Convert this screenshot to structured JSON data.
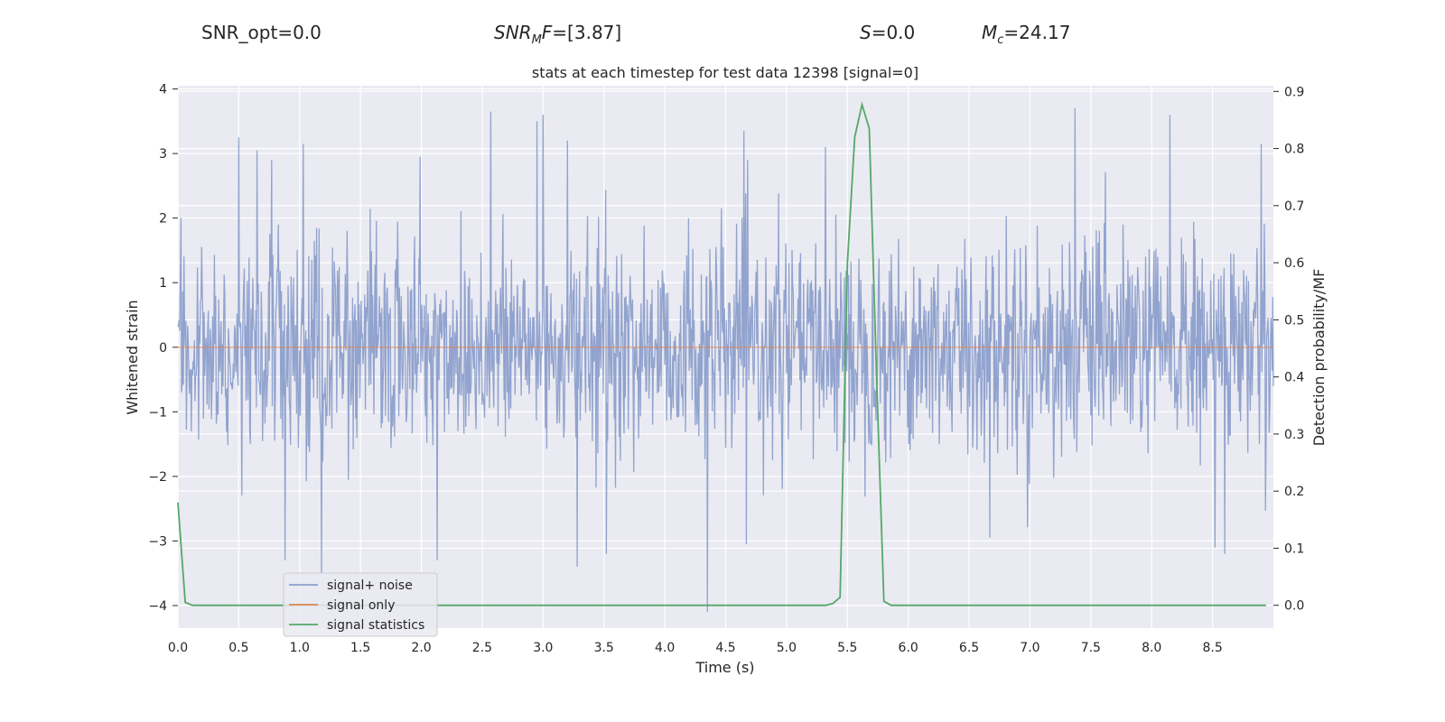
{
  "header": {
    "snr_opt": "SNR_opt=0.0",
    "snr_mf_name": "SNR",
    "snr_mf_sub": "M",
    "snr_mf_tail": "F",
    "snr_mf_value": "=[3.87]",
    "s_name": "S",
    "s_value": "=0.0",
    "mc_name": "M",
    "mc_sub": "c",
    "mc_value": "=24.17"
  },
  "chart_data": {
    "type": "line",
    "title": "stats at each timestep for test data 12398 [signal=0]",
    "xlabel": "Time (s)",
    "ylabel": "Whitened strain",
    "y2label": "Detection probability/MF",
    "xlim": [
      0.0,
      9.0
    ],
    "ylim": [
      -4.35,
      4.05
    ],
    "y2lim": [
      -0.04,
      0.91
    ],
    "xticks": [
      "0.0",
      "0.5",
      "1.0",
      "1.5",
      "2.0",
      "2.5",
      "3.0",
      "3.5",
      "4.0",
      "4.5",
      "5.0",
      "5.5",
      "6.0",
      "6.5",
      "7.0",
      "7.5",
      "8.0",
      "8.5"
    ],
    "yticks": [
      "4",
      "3",
      "2",
      "1",
      "0",
      "−1",
      "−2",
      "−3",
      "−4"
    ],
    "y2ticks": [
      "0.9",
      "0.8",
      "0.7",
      "0.6",
      "0.5",
      "0.4",
      "0.3",
      "0.2",
      "0.1",
      "0.0"
    ],
    "grid": true,
    "legend_position": "lower-left",
    "colors": {
      "noise": "#8c9fcb",
      "signal": "#dd8452",
      "stats": "#55a868",
      "background": "#eaeaf2",
      "grid": "#ffffff"
    },
    "series": [
      {
        "name": "signal+ noise",
        "axis": "left",
        "kind": "noise",
        "sample_rate_hz": 200,
        "duration_s": 9.0,
        "std": 0.82,
        "peaks": [
          {
            "t": 0.5,
            "v": 3.25
          },
          {
            "t": 0.65,
            "v": 3.05
          },
          {
            "t": 0.77,
            "v": 2.9
          },
          {
            "t": 1.03,
            "v": 3.15
          },
          {
            "t": 1.99,
            "v": 2.95
          },
          {
            "t": 2.57,
            "v": 3.65
          },
          {
            "t": 2.95,
            "v": 3.5
          },
          {
            "t": 3.0,
            "v": 3.6
          },
          {
            "t": 3.2,
            "v": 3.2
          },
          {
            "t": 4.65,
            "v": 3.35
          },
          {
            "t": 5.32,
            "v": 3.1
          },
          {
            "t": 7.37,
            "v": 3.7
          },
          {
            "t": 8.15,
            "v": 3.6
          },
          {
            "t": 8.9,
            "v": 3.15
          },
          {
            "t": 0.88,
            "v": -3.3
          },
          {
            "t": 1.18,
            "v": -3.5
          },
          {
            "t": 2.13,
            "v": -3.3
          },
          {
            "t": 3.28,
            "v": -3.4
          },
          {
            "t": 3.52,
            "v": -3.2
          },
          {
            "t": 4.35,
            "v": -4.1
          },
          {
            "t": 4.67,
            "v": -3.05
          },
          {
            "t": 6.67,
            "v": -2.95
          },
          {
            "t": 8.52,
            "v": -3.1
          },
          {
            "t": 8.6,
            "v": -3.2
          }
        ]
      },
      {
        "name": "signal only",
        "axis": "left",
        "x": [
          0.0,
          9.0
        ],
        "y": [
          0.0,
          0.0
        ]
      },
      {
        "name": "signal statistics",
        "axis": "right",
        "x": [
          0.0,
          0.06,
          0.12,
          5.32,
          5.38,
          5.44,
          5.5,
          5.56,
          5.62,
          5.68,
          5.74,
          5.8,
          5.86,
          8.94
        ],
        "y": [
          0.18,
          0.005,
          0.0,
          0.0,
          0.003,
          0.014,
          0.6,
          0.82,
          0.877,
          0.835,
          0.4,
          0.007,
          0.0,
          0.0
        ]
      }
    ]
  }
}
